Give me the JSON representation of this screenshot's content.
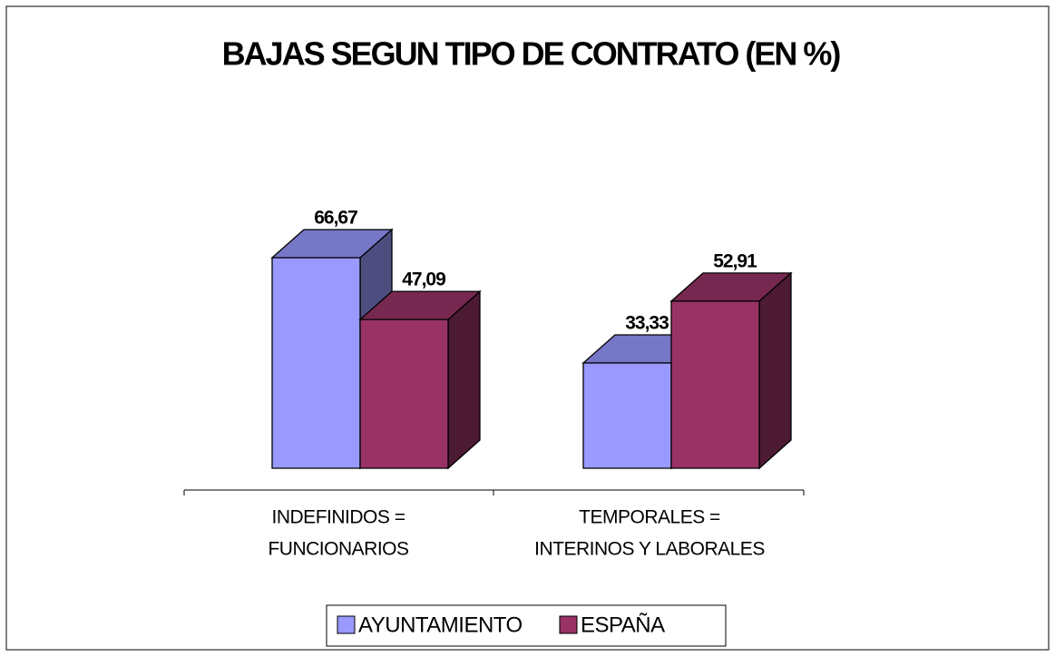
{
  "chart_data": {
    "type": "bar3d",
    "title": "BAJAS SEGUN TIPO DE CONTRATO (EN %)",
    "categories": [
      [
        "INDEFINIDOS =",
        "FUNCIONARIOS"
      ],
      [
        "TEMPORALES =",
        "INTERINOS Y LABORALES"
      ]
    ],
    "series": [
      {
        "name": "AYUNTAMIENTO",
        "color": "#9999ff",
        "values": [
          66.67,
          33.33
        ],
        "value_labels": [
          "66,67",
          "33,33"
        ]
      },
      {
        "name": "ESPAÑA",
        "color": "#993366",
        "values": [
          47.09,
          52.91
        ],
        "value_labels": [
          "47,09",
          "52,91"
        ]
      }
    ],
    "ylim": [
      0,
      70
    ],
    "legend": "bottom"
  }
}
